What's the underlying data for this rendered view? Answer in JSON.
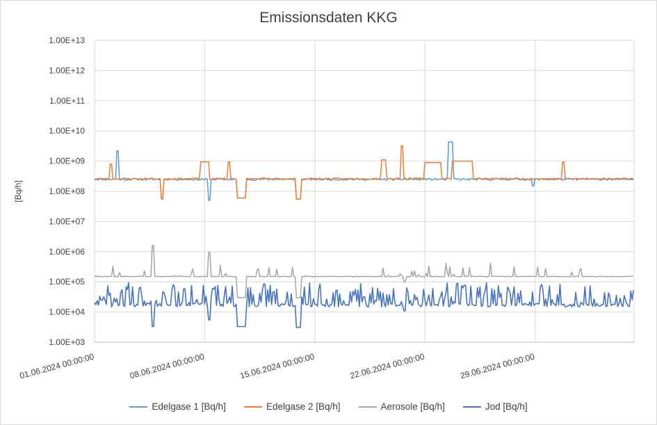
{
  "chart_data": {
    "type": "line",
    "title": "Emissionsdaten KKG",
    "ylabel": "[Bq/h]",
    "xlabel": "",
    "yscale": "log",
    "ylim": [
      1000,
      10000000000000
    ],
    "ytick_labels": [
      "1.00E+03",
      "1.00E+04",
      "1.00E+05",
      "1.00E+06",
      "1.00E+07",
      "1.00E+08",
      "1.00E+09",
      "1.00E+10",
      "1.00E+11",
      "1.00E+12",
      "1.00E+13"
    ],
    "xlim": [
      "01.06.2024 00:00:00",
      "05.07.2024 07:00:00"
    ],
    "xtick_labels": [
      "01.06.2024 00:00:00",
      "08.06.2024 00:00:00",
      "15.06.2024 00:00:00",
      "22.06.2024 00:00:00",
      "29.06.2024 00:00:00"
    ],
    "grid": true,
    "legend_position": "bottom",
    "series": [
      {
        "name": "Edelgase 1 [Bq/h]",
        "color": "#5b9bd5",
        "baseline": 250000000,
        "events": [
          {
            "x": "02.06.2024 10:00",
            "y": 2200000000
          },
          {
            "x": "05.06.2024 06:00",
            "y": 60000000
          },
          {
            "x": "08.06.2024 06:00",
            "y": 50000000
          },
          {
            "x": "10.06.2024 02:00 – 10.06.2024 14:00",
            "y": 60000000
          },
          {
            "x": "13.06.2024 20:00 – 14.06.2024 02:00",
            "y": 55000000
          },
          {
            "x": "23.06.2024 12:00 – 23.06.2024 18:00",
            "y": 4300000000
          },
          {
            "x": "28.06.2024 20:00",
            "y": 150000000
          }
        ]
      },
      {
        "name": "Edelgase 2 [Bq/h]",
        "color": "#ed7d31",
        "baseline": 260000000,
        "events": [
          {
            "x": "02.06.2024 00:00",
            "y": 800000000
          },
          {
            "x": "05.06.2024 06:00",
            "y": 55000000
          },
          {
            "x": "07.06.2024 18:00 – 08.06.2024 06:00",
            "y": 950000000
          },
          {
            "x": "09.06.2024 12:00",
            "y": 950000000
          },
          {
            "x": "10.06.2024 02:00 – 10.06.2024 14:00",
            "y": 60000000
          },
          {
            "x": "13.06.2024 20:00 – 14.06.2024 02:00",
            "y": 55000000
          },
          {
            "x": "19.06.2024 06:00 – 19.06.2024 12:00",
            "y": 1100000000
          },
          {
            "x": "20.06.2024 12:00",
            "y": 3200000000
          },
          {
            "x": "22.06.2024 00:00 – 23.06.2024 00:00",
            "y": 900000000
          },
          {
            "x": "23.06.2024 18:00 – 25.06.2024 00:00",
            "y": 1000000000
          },
          {
            "x": "30.06.2024 18:00",
            "y": 950000000
          }
        ]
      },
      {
        "name": "Aerosole [Bq/h]",
        "color": "#a5a5a5",
        "baseline": 150000,
        "events": [
          {
            "x": "04.06.2024 16:00",
            "y": 1600000
          },
          {
            "x": "08.06.2024 06:00",
            "y": 950000
          },
          {
            "x": "10.06.2024 02:00 – 10.06.2024 14:00",
            "y": 30000
          },
          {
            "x": "13.06.2024 20:00 – 14.06.2024 02:00",
            "y": 30000
          },
          {
            "x": "20.06.2024 16:00",
            "y": 100000
          }
        ]
      },
      {
        "name": "Jod [Bq/h]",
        "color": "#4472c4",
        "baseline": 17000,
        "events": [
          {
            "x": "04.06.2024 16:00",
            "y": 3300
          },
          {
            "x": "08.06.2024 06:00",
            "y": 5500
          },
          {
            "x": "10.06.2024 02:00 – 10.06.2024 14:00",
            "y": 3300
          },
          {
            "x": "13.06.2024 20:00 – 14.06.2024 02:00",
            "y": 3100
          },
          {
            "x": "20.06.2024 16:00",
            "y": 11000
          }
        ]
      }
    ]
  }
}
